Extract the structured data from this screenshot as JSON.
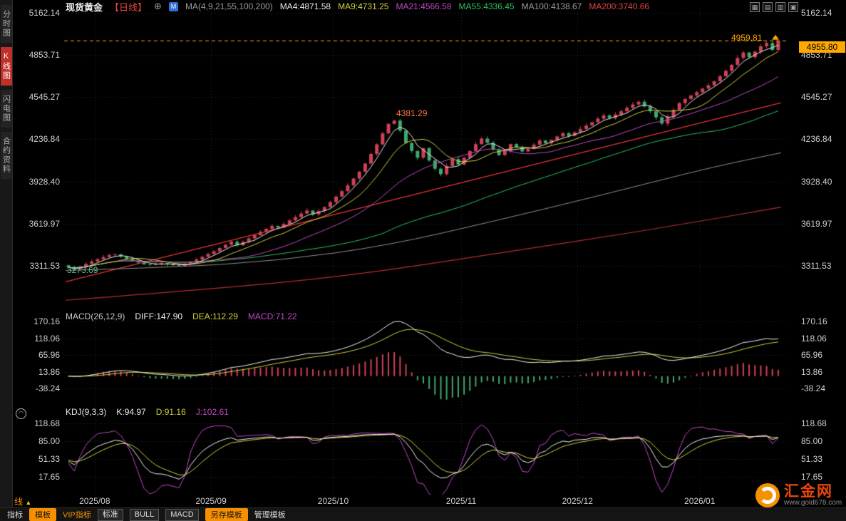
{
  "header": {
    "symbol": "现货黄金",
    "period_tag": "【日线】",
    "ma_label": "MA(4,9,21,55,100,200)",
    "ma_values": [
      {
        "label": "MA4:4871.58",
        "color": "#e8e8e8"
      },
      {
        "label": "MA9:4731.25",
        "color": "#cfcf3a"
      },
      {
        "label": "MA21:4566.58",
        "color": "#bf49c6"
      },
      {
        "label": "MA55:4336.45",
        "color": "#2fc05c"
      },
      {
        "label": "MA100:4138.67",
        "color": "#9b9b9b"
      },
      {
        "label": "MA200:3740.66",
        "color": "#e04343"
      }
    ]
  },
  "icons": {
    "add_icon": "⊕",
    "badge_glyph": "M",
    "layout_icons": [
      "▦",
      "▤",
      "▥",
      "▣"
    ],
    "panel_toggle": "◠",
    "caret_up": "▲"
  },
  "sidebar": {
    "items": [
      "分时图",
      "K线图",
      "闪电图",
      "合约资料"
    ],
    "active_index": 1
  },
  "axes": {
    "price": [
      "5162.14",
      "4853.71",
      "4545.27",
      "4236.84",
      "3928.40",
      "3619.97",
      "3311.53"
    ],
    "macd": [
      "170.16",
      "118.06",
      "65.96",
      "13.86",
      "-38.24"
    ],
    "kdj": [
      "118.68",
      "85.00",
      "51.33",
      "17.65"
    ],
    "dates": [
      "2025/08",
      "2025/09",
      "2025/10",
      "2025/11",
      "2025/12",
      "2026/01"
    ]
  },
  "annotations": {
    "session_high": "4959.81",
    "last_price": "4955.80",
    "peak_label": "4381.29",
    "low_label": "3273.69"
  },
  "macd_header": {
    "title": "MACD(26,12,9)",
    "diff": "DIFF:147.90",
    "dea": "DEA:112.29",
    "macd": "MACD:71.22"
  },
  "kdj_header": {
    "title": "KDJ(9,3,3)",
    "k": "K:94.97",
    "d": "D:91.16",
    "j": "J:102.61"
  },
  "footer": {
    "period": "日线",
    "tabs": [
      {
        "label": "指标",
        "style": "plain"
      },
      {
        "label": "模板",
        "style": "orange"
      },
      {
        "label": "VIP指标",
        "style": "vip"
      },
      {
        "label": "标准",
        "style": "boxed"
      },
      {
        "label": "BULL",
        "style": "boxed"
      },
      {
        "label": "MACD",
        "style": "boxed"
      },
      {
        "label": "另存模板",
        "style": "orange"
      },
      {
        "label": "管理模板",
        "style": "plain"
      }
    ]
  },
  "brand": {
    "name": "汇金网",
    "url": "www.gold678.com"
  },
  "colors": {
    "up": "#cf4156",
    "down": "#3fa96c",
    "ma4": "#e8e8e8",
    "ma9": "#cfcf3a",
    "ma21": "#bf49c6",
    "ma55": "#2fc05c",
    "ma100": "#8f8f8f",
    "ma200": "#b22e2e",
    "trend": "#e03535",
    "accent": "#ffa800",
    "grid": "#2b2b2b",
    "axis_text": "#cfcfcf",
    "diff": "#f0f0f0",
    "dea": "#cfcf3a",
    "macd_line": "#bf49c6",
    "k": "#f0f0f0",
    "d": "#cfcf3a",
    "j": "#bf49c6"
  },
  "chart_data": {
    "type": "candlestick",
    "symbol": "现货黄金",
    "period": "日线",
    "price_axis": [
      5162.14,
      4853.71,
      4545.27,
      4236.84,
      3928.4,
      3619.97,
      3311.53
    ],
    "closes": [
      3302,
      3286,
      3306,
      3326,
      3344,
      3360,
      3376,
      3390,
      3396,
      3380,
      3362,
      3348,
      3336,
      3322,
      3318,
      3326,
      3332,
      3324,
      3316,
      3312,
      3324,
      3340,
      3358,
      3378,
      3398,
      3418,
      3442,
      3466,
      3488,
      3462,
      3486,
      3512,
      3536,
      3560,
      3582,
      3604,
      3592,
      3618,
      3644,
      3668,
      3694,
      3716,
      3688,
      3712,
      3742,
      3778,
      3818,
      3858,
      3900,
      3950,
      4000,
      4060,
      4130,
      4200,
      4280,
      4350,
      4374,
      4300,
      4210,
      4152,
      4102,
      4172,
      4082,
      4022,
      3982,
      4042,
      4092,
      4052,
      4102,
      4152,
      4202,
      4242,
      4212,
      4162,
      4122,
      4152,
      4202,
      4178,
      4148,
      4168,
      4198,
      4228,
      4208,
      4232,
      4258,
      4282,
      4262,
      4288,
      4312,
      4338,
      4362,
      4388,
      4412,
      4392,
      4418,
      4442,
      4468,
      4492,
      4512,
      4478,
      4442,
      4398,
      4352,
      4402,
      4452,
      4502,
      4532,
      4558,
      4582,
      4608,
      4632,
      4662,
      4698,
      4738,
      4782,
      4832,
      4872,
      4838,
      4878,
      4918,
      4942,
      4890,
      4955.8
    ],
    "key_points": {
      "low": {
        "index": 1,
        "price": 3273.69
      },
      "peak": {
        "index": 56,
        "price": 4381.29
      },
      "high": {
        "index": 122,
        "price": 4959.81
      }
    },
    "last_price": 4955.8,
    "month_ticks": [
      {
        "label": "2025/08",
        "index": 5
      },
      {
        "label": "2025/09",
        "index": 25
      },
      {
        "label": "2025/10",
        "index": 46
      },
      {
        "label": "2025/11",
        "index": 68
      },
      {
        "label": "2025/12",
        "index": 88
      },
      {
        "label": "2026/01",
        "index": 109
      }
    ],
    "ma_periods": [
      4,
      9,
      21,
      55
    ],
    "ma100_points": [
      [
        0,
        3278
      ],
      [
        0.15,
        3300
      ],
      [
        0.3,
        3350
      ],
      [
        0.45,
        3460
      ],
      [
        0.6,
        3640
      ],
      [
        0.75,
        3830
      ],
      [
        0.9,
        4030
      ],
      [
        1,
        4138.67
      ]
    ],
    "ma200_points": [
      [
        0,
        3060
      ],
      [
        0.2,
        3140
      ],
      [
        0.4,
        3240
      ],
      [
        0.6,
        3400
      ],
      [
        0.8,
        3560
      ],
      [
        1,
        3740.66
      ]
    ],
    "trendline_points": [
      [
        0,
        3195
      ],
      [
        1,
        4505
      ]
    ],
    "macd": {
      "params": [
        26,
        12,
        9
      ],
      "axis": [
        170.16,
        118.06,
        65.96,
        13.86,
        -38.24
      ],
      "diff": 147.9,
      "dea": 112.29,
      "bar": 71.22
    },
    "kdj": {
      "params": [
        9,
        3,
        3
      ],
      "axis": [
        118.68,
        85.0,
        51.33,
        17.65
      ],
      "k": 94.97,
      "d": 91.16,
      "j": 102.61
    }
  }
}
